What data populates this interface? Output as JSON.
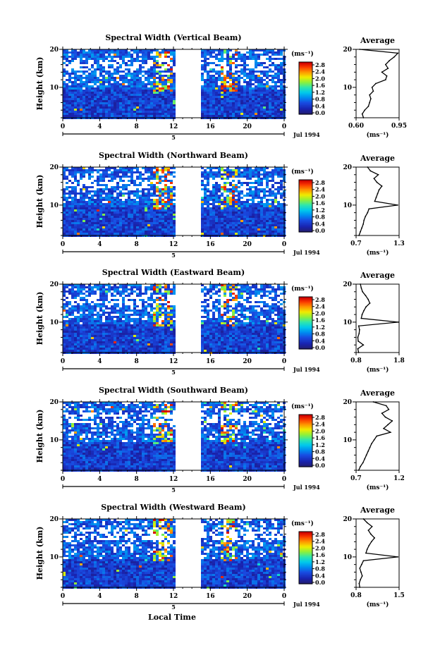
{
  "figure": {
    "xlabel": "Local Time",
    "date_label": "Jul 1994",
    "day_marker": "5",
    "ylabel": "Height (km)",
    "colorbar_unit": "(ms⁻¹)",
    "profile_title": "Average",
    "profile_xlabel": "(ms⁻¹)"
  },
  "chart_data": [
    {
      "type": "heatmap",
      "title": "Spectral Width (Vertical Beam)",
      "xlabel": "Local Time",
      "ylabel": "Height (km)",
      "x_ticks": [
        "0",
        "4",
        "8",
        "12",
        "16",
        "20",
        "0"
      ],
      "xlim": [
        0,
        24
      ],
      "y_ticks": [
        "10",
        "20"
      ],
      "ylim": [
        2,
        20
      ],
      "colorbar_ticks": [
        "0.0",
        "0.4",
        "0.8",
        "1.2",
        "1.6",
        "2.0",
        "2.4",
        "2.8"
      ],
      "data_gap": [
        12.4,
        14.6
      ],
      "profile": {
        "title": "Average",
        "xlabel": "(ms⁻¹)",
        "x_ticks": [
          "0.60",
          "0.95"
        ],
        "xlim": [
          0.6,
          0.95
        ],
        "heights": [
          2,
          3,
          4,
          5,
          6,
          7,
          8,
          9,
          10,
          11,
          12,
          13,
          14,
          15,
          16,
          17,
          18,
          19,
          20
        ],
        "values": [
          0.66,
          0.65,
          0.67,
          0.7,
          0.71,
          0.72,
          0.71,
          0.74,
          0.73,
          0.76,
          0.84,
          0.85,
          0.81,
          0.86,
          0.84,
          0.87,
          0.91,
          0.94,
          0.63
        ]
      }
    },
    {
      "type": "heatmap",
      "title": "Spectral Width (Northward Beam)",
      "xlabel": "Local Time",
      "ylabel": "Height (km)",
      "x_ticks": [
        "0",
        "4",
        "8",
        "12",
        "16",
        "20",
        "0"
      ],
      "xlim": [
        0,
        24
      ],
      "y_ticks": [
        "10",
        "20"
      ],
      "ylim": [
        2,
        20
      ],
      "colorbar_ticks": [
        "0.0",
        "0.4",
        "0.8",
        "1.2",
        "1.6",
        "2.0",
        "2.4",
        "2.8"
      ],
      "data_gap": [
        12.4,
        14.6
      ],
      "profile": {
        "title": "Average",
        "xlabel": "(ms⁻¹)",
        "x_ticks": [
          "0.7",
          "1.3"
        ],
        "xlim": [
          0.7,
          1.3
        ],
        "heights": [
          2,
          3,
          4,
          5,
          6,
          7,
          8,
          9,
          10,
          11,
          12,
          13,
          14,
          15,
          16,
          17,
          18,
          19,
          20
        ],
        "values": [
          0.74,
          0.76,
          0.78,
          0.8,
          0.81,
          0.83,
          0.86,
          0.88,
          1.28,
          0.96,
          0.98,
          1.0,
          1.02,
          1.06,
          0.99,
          0.95,
          1.01,
          0.9,
          0.86
        ]
      }
    },
    {
      "type": "heatmap",
      "title": "Spectral Width (Eastward Beam)",
      "xlabel": "Local Time",
      "ylabel": "Height (km)",
      "x_ticks": [
        "0",
        "4",
        "8",
        "12",
        "16",
        "20",
        "0"
      ],
      "xlim": [
        0,
        24
      ],
      "y_ticks": [
        "10",
        "20"
      ],
      "ylim": [
        2,
        20
      ],
      "colorbar_ticks": [
        "0.0",
        "0.4",
        "0.8",
        "1.2",
        "1.6",
        "2.0",
        "2.4",
        "2.8"
      ],
      "data_gap": [
        12.4,
        14.6
      ],
      "profile": {
        "title": "Average",
        "xlabel": "(ms⁻¹)",
        "x_ticks": [
          "0.8",
          "1.8"
        ],
        "xlim": [
          0.8,
          1.8
        ],
        "heights": [
          2,
          3,
          4,
          5,
          6,
          7,
          8,
          9,
          10,
          11,
          12,
          13,
          14,
          15,
          16,
          17,
          18,
          19,
          20
        ],
        "values": [
          0.86,
          0.84,
          0.97,
          0.85,
          0.84,
          0.87,
          0.88,
          0.86,
          1.78,
          0.92,
          0.94,
          0.98,
          1.03,
          1.12,
          1.08,
          1.02,
          0.95,
          0.92,
          0.9
        ]
      }
    },
    {
      "type": "heatmap",
      "title": "Spectral Width (Southward Beam)",
      "xlabel": "Local Time",
      "ylabel": "Height (km)",
      "x_ticks": [
        "0",
        "4",
        "8",
        "12",
        "16",
        "20",
        "0"
      ],
      "xlim": [
        0,
        24
      ],
      "y_ticks": [
        "10",
        "20"
      ],
      "ylim": [
        2,
        20
      ],
      "colorbar_ticks": [
        "0.0",
        "0.4",
        "0.8",
        "1.2",
        "1.6",
        "2.0",
        "2.4",
        "2.8"
      ],
      "data_gap": [
        12.4,
        14.6
      ],
      "profile": {
        "title": "Average",
        "xlabel": "(ms⁻¹)",
        "x_ticks": [
          "0.7",
          "1.2"
        ],
        "xlim": [
          0.7,
          1.2
        ],
        "heights": [
          2,
          3,
          4,
          5,
          6,
          7,
          8,
          9,
          10,
          11,
          12,
          13,
          14,
          15,
          16,
          17,
          18,
          19,
          20
        ],
        "values": [
          0.73,
          0.75,
          0.78,
          0.8,
          0.82,
          0.84,
          0.86,
          0.88,
          0.91,
          0.94,
          1.1,
          1.02,
          1.07,
          1.12,
          1.04,
          1.0,
          1.08,
          1.05,
          0.9
        ]
      }
    },
    {
      "type": "heatmap",
      "title": "Spectral Width (Westward Beam)",
      "xlabel": "Local Time",
      "ylabel": "Height (km)",
      "x_ticks": [
        "0",
        "4",
        "8",
        "12",
        "16",
        "20",
        "0"
      ],
      "xlim": [
        0,
        24
      ],
      "y_ticks": [
        "10",
        "20"
      ],
      "ylim": [
        2,
        20
      ],
      "colorbar_ticks": [
        "0.0",
        "0.4",
        "0.8",
        "1.2",
        "1.6",
        "2.0",
        "2.4",
        "2.8"
      ],
      "data_gap": [
        12.4,
        14.6
      ],
      "profile": {
        "title": "Average",
        "xlabel": "(ms⁻¹)",
        "x_ticks": [
          "0.8",
          "1.5"
        ],
        "xlim": [
          0.8,
          1.5
        ],
        "heights": [
          2,
          3,
          4,
          5,
          6,
          7,
          8,
          9,
          10,
          11,
          12,
          13,
          14,
          15,
          16,
          17,
          18,
          19,
          20
        ],
        "values": [
          0.86,
          0.85,
          0.87,
          0.9,
          0.88,
          0.86,
          0.89,
          0.92,
          1.48,
          0.96,
          0.98,
          1.01,
          1.05,
          1.1,
          1.04,
          1.0,
          1.06,
          0.98,
          0.92
        ]
      }
    }
  ]
}
